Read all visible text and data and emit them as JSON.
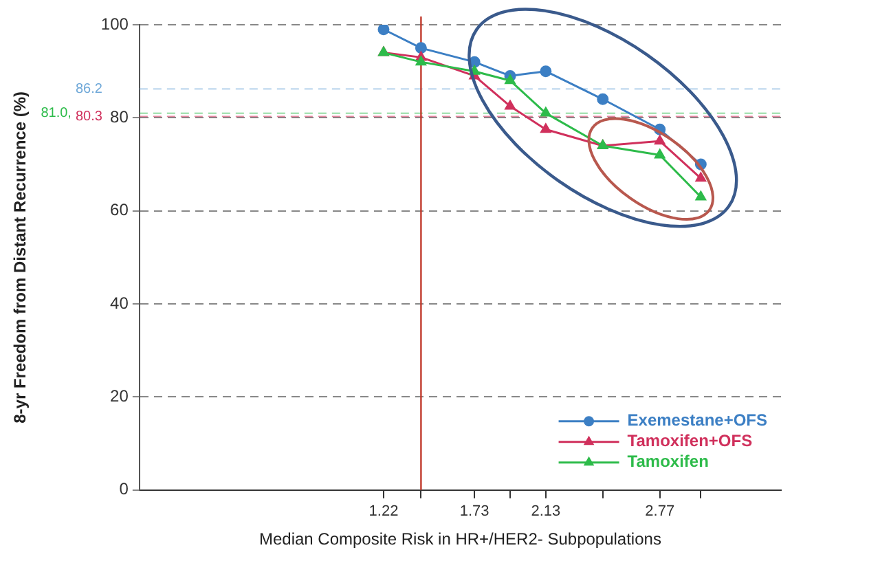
{
  "chart_data": {
    "type": "line",
    "xlabel": "Median Composite Risk in HR+/HER2- Subpopulations",
    "ylabel": "8-yr Freedom from Distant Recurrence (%)",
    "x": [
      1.22,
      1.43,
      1.73,
      1.93,
      2.13,
      2.45,
      2.77,
      3.0
    ],
    "series": [
      {
        "name": "Exemestane+OFS",
        "color": "#3c7fc4",
        "marker": "circle",
        "values": [
          99,
          95,
          92,
          89,
          90,
          84,
          77.5,
          70
        ]
      },
      {
        "name": "Tamoxifen+OFS",
        "color": "#d0305c",
        "marker": "triangle",
        "values": [
          94,
          93,
          89,
          82.5,
          77.5,
          74,
          75,
          67
        ]
      },
      {
        "name": "Tamoxifen",
        "color": "#2dbb4a",
        "marker": "triangle",
        "values": [
          94,
          92,
          90,
          88,
          81,
          74,
          72,
          63
        ]
      }
    ],
    "xlim": [
      -0.15,
      3.45
    ],
    "xticks": [
      1.22,
      {
        "value": 1.43,
        "label": null
      },
      1.73,
      {
        "value": 1.93,
        "label": null
      },
      2.13,
      {
        "value": 2.45,
        "label": null
      },
      2.77,
      {
        "value": 3.0,
        "label": null
      }
    ],
    "ylim": [
      0,
      100
    ],
    "yticks": [
      0,
      20,
      40,
      60,
      80,
      100
    ],
    "ref_lines": [
      {
        "axis": "y",
        "value": 86.2,
        "label": "86.2",
        "color": "#6fa8d8",
        "line_style": "dashed"
      },
      {
        "axis": "y",
        "value": 80.3,
        "label": "80.3",
        "color": "#d0305c",
        "line_style": "dashed"
      },
      {
        "axis": "y",
        "value": 81.0,
        "label": "81.0,",
        "color": "#2dbb4a",
        "line_style": "dashed"
      },
      {
        "axis": "x",
        "value": 1.43,
        "color": "#c0392b",
        "line_style": "solid"
      }
    ],
    "grid": "y",
    "legend": "bottom right",
    "line_style": "solid"
  }
}
